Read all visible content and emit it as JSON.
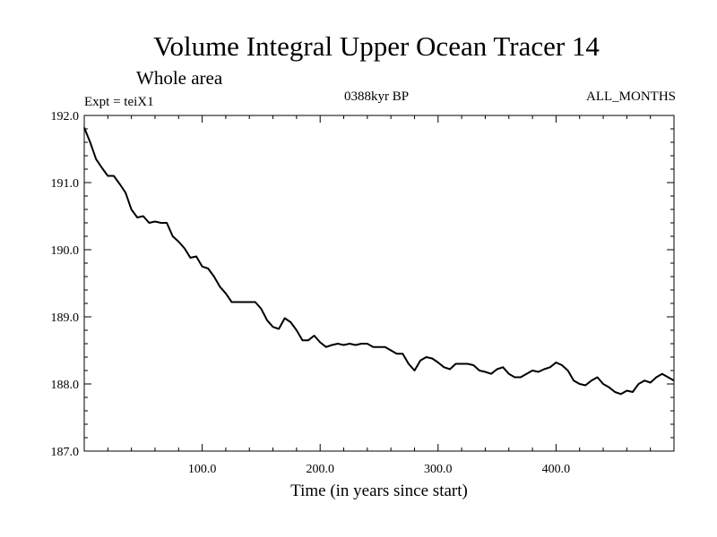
{
  "chart_data": {
    "type": "line",
    "title": "Volume Integral Upper Ocean Tracer 14",
    "subtitle": "Whole area",
    "annotations": {
      "left": "Expt = teiX1",
      "center": "0388kyr BP",
      "right": "ALL_MONTHS"
    },
    "xlabel": "Time (in years since start)",
    "ylabel": "",
    "xlim": [
      0,
      500
    ],
    "ylim": [
      187.0,
      192.0
    ],
    "x_ticks": [
      100,
      200,
      300,
      400
    ],
    "x_tick_labels": [
      "100.0",
      "200.0",
      "300.0",
      "400.0"
    ],
    "y_ticks": [
      187.0,
      188.0,
      189.0,
      190.0,
      191.0,
      192.0
    ],
    "y_tick_labels": [
      "187.0",
      "188.0",
      "189.0",
      "190.0",
      "191.0",
      "192.0"
    ],
    "grid": false,
    "series": [
      {
        "color": "#000000",
        "x": [
          0,
          5,
          10,
          15,
          20,
          25,
          30,
          35,
          40,
          45,
          50,
          55,
          60,
          65,
          70,
          75,
          80,
          85,
          90,
          95,
          100,
          105,
          110,
          115,
          120,
          125,
          130,
          135,
          140,
          145,
          150,
          155,
          160,
          165,
          170,
          175,
          180,
          185,
          190,
          195,
          200,
          205,
          210,
          215,
          220,
          225,
          230,
          235,
          240,
          245,
          250,
          255,
          260,
          265,
          270,
          275,
          280,
          285,
          290,
          295,
          300,
          305,
          310,
          315,
          320,
          325,
          330,
          335,
          340,
          345,
          350,
          355,
          360,
          365,
          370,
          375,
          380,
          385,
          390,
          395,
          400,
          405,
          410,
          415,
          420,
          425,
          430,
          435,
          440,
          445,
          450,
          455,
          460,
          465,
          470,
          475,
          480,
          485,
          490,
          495,
          500
        ],
        "y": [
          191.82,
          191.6,
          191.35,
          191.22,
          191.1,
          191.1,
          190.98,
          190.85,
          190.6,
          190.48,
          190.5,
          190.4,
          190.42,
          190.4,
          190.4,
          190.2,
          190.12,
          190.02,
          189.88,
          189.9,
          189.75,
          189.72,
          189.6,
          189.45,
          189.35,
          189.22,
          189.22,
          189.22,
          189.22,
          189.22,
          189.12,
          188.95,
          188.85,
          188.82,
          188.98,
          188.92,
          188.8,
          188.65,
          188.65,
          188.72,
          188.62,
          188.55,
          188.58,
          188.6,
          188.58,
          188.6,
          188.58,
          188.6,
          188.6,
          188.55,
          188.55,
          188.55,
          188.5,
          188.45,
          188.45,
          188.3,
          188.2,
          188.35,
          188.4,
          188.38,
          188.32,
          188.25,
          188.22,
          188.3,
          188.3,
          188.3,
          188.28,
          188.2,
          188.18,
          188.15,
          188.22,
          188.25,
          188.15,
          188.1,
          188.1,
          188.15,
          188.2,
          188.18,
          188.22,
          188.25,
          188.32,
          188.28,
          188.2,
          188.05,
          188.0,
          187.98,
          188.05,
          188.1,
          188.0,
          187.95,
          187.88,
          187.85,
          187.9,
          187.88,
          188.0,
          188.05,
          188.02,
          188.1,
          188.15,
          188.1,
          188.05
        ]
      }
    ]
  }
}
